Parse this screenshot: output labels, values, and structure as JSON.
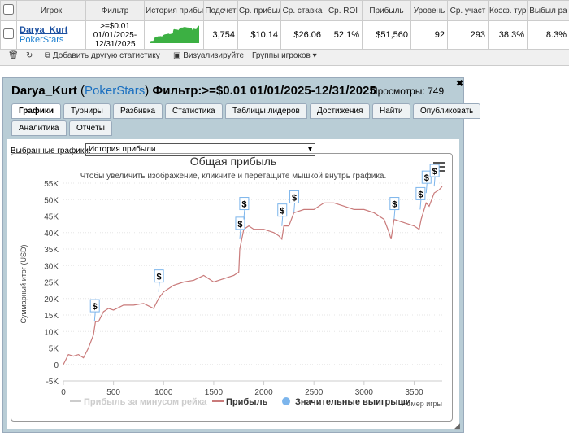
{
  "table": {
    "headers": [
      "Игрок",
      "Фильтр",
      "История прибы",
      "Подсчет",
      "Ср. прибыль",
      "Ср. ставка",
      "Ср. ROI",
      "Прибыль",
      "Уровень",
      "Ср. участ",
      "Коэф. тур",
      "Выбыл ра"
    ],
    "row": {
      "player": "Darya_Kurt",
      "site": "PokerStars",
      "filter": ">=$0.01 01/01/2025-12/31/2025",
      "cells": [
        "3,754",
        "$10.14",
        "$26.06",
        "52.1%",
        "$51,560",
        "92",
        "293",
        "38.3%",
        "8.3%"
      ]
    }
  },
  "toolbar": {
    "add": "Добавить другую статистику",
    "visualize": "Визуализируйте",
    "groups": "Группы игроков"
  },
  "panel": {
    "title": {
      "player": "Darya_Kurt",
      "open": "(",
      "site": "PokerStars",
      "close": ")",
      "filter": "Фильтр:>=$0.01 01/01/2025-12/31/2025"
    },
    "views": "Просмотры: 749",
    "tabs": [
      "Графики",
      "Турниры",
      "Разбивка",
      "Статистика",
      "Таблицы лидеров",
      "Достижения",
      "Найти",
      "Опубликовать",
      "Аналитика",
      "Отчёты"
    ],
    "select_label": "Выбранные графики:",
    "select_value": "История прибыли"
  },
  "chart": {
    "type": "line",
    "title": "Общая прибыль",
    "subtitle": "Чтобы увеличить изображение, кликните и перетащите мышкой внутрь графика.",
    "ylabel": "Суммарный итог (USD)",
    "xlabel": "Номер игры",
    "xlim": [
      0,
      3780
    ],
    "ylim": [
      -5000,
      55000
    ],
    "xticks": [
      0,
      500,
      1000,
      1500,
      2000,
      2500,
      3000,
      3500
    ],
    "yticks": [
      {
        "value": -5000,
        "label": "-5K"
      },
      0,
      {
        "value": 5000,
        "label": "5K"
      },
      {
        "value": 10000,
        "label": "10K"
      },
      {
        "value": 15000,
        "label": "15K"
      },
      {
        "value": 20000,
        "label": "20K"
      },
      {
        "value": 25000,
        "label": "25K"
      },
      {
        "value": 30000,
        "label": "30K"
      },
      {
        "value": 35000,
        "label": "35K"
      },
      {
        "value": 40000,
        "label": "40K"
      },
      {
        "value": 45000,
        "label": "45K"
      },
      {
        "value": 50000,
        "label": "50K"
      },
      {
        "value": 55000,
        "label": "55K"
      }
    ],
    "series": [
      {
        "name": "Прибыль за минусом рейка",
        "color": "#cccccc",
        "hidden": true
      },
      {
        "name": "Прибыль",
        "color": "#c97a7a",
        "x": [
          0,
          50,
          100,
          150,
          200,
          250,
          300,
          320,
          350,
          400,
          450,
          500,
          600,
          700,
          800,
          900,
          950,
          1000,
          1050,
          1100,
          1200,
          1300,
          1400,
          1500,
          1600,
          1700,
          1750,
          1760,
          1780,
          1800,
          1850,
          1900,
          2000,
          2100,
          2150,
          2180,
          2200,
          2250,
          2300,
          2400,
          2500,
          2600,
          2700,
          2800,
          2900,
          3000,
          3100,
          3200,
          3250,
          3270,
          3300,
          3400,
          3500,
          3550,
          3570,
          3620,
          3650,
          3700,
          3750,
          3780
        ],
        "values": [
          0,
          3000,
          2500,
          3000,
          2000,
          5000,
          9000,
          13000,
          13000,
          16000,
          17000,
          16500,
          18000,
          18000,
          18500,
          17000,
          20000,
          22000,
          23000,
          24000,
          25000,
          25500,
          27000,
          25000,
          26000,
          27000,
          28000,
          35000,
          38000,
          41000,
          42000,
          41000,
          41000,
          40000,
          39000,
          38000,
          42000,
          42000,
          46000,
          47000,
          47000,
          49000,
          49000,
          48000,
          47000,
          47000,
          46000,
          44000,
          40000,
          38000,
          44000,
          43000,
          42000,
          41000,
          44000,
          49000,
          48000,
          52000,
          53000,
          54000
        ]
      },
      {
        "name": "Значительные выигрыши",
        "color": "#7cb5ec",
        "marker_label": "$",
        "x": [
          310,
          950,
          1760,
          1800,
          2180,
          2300,
          3300,
          3560,
          3620,
          3700
        ],
        "values": [
          13000,
          22000,
          38000,
          44000,
          42000,
          46000,
          44000,
          47000,
          52000,
          54000
        ]
      }
    ]
  }
}
